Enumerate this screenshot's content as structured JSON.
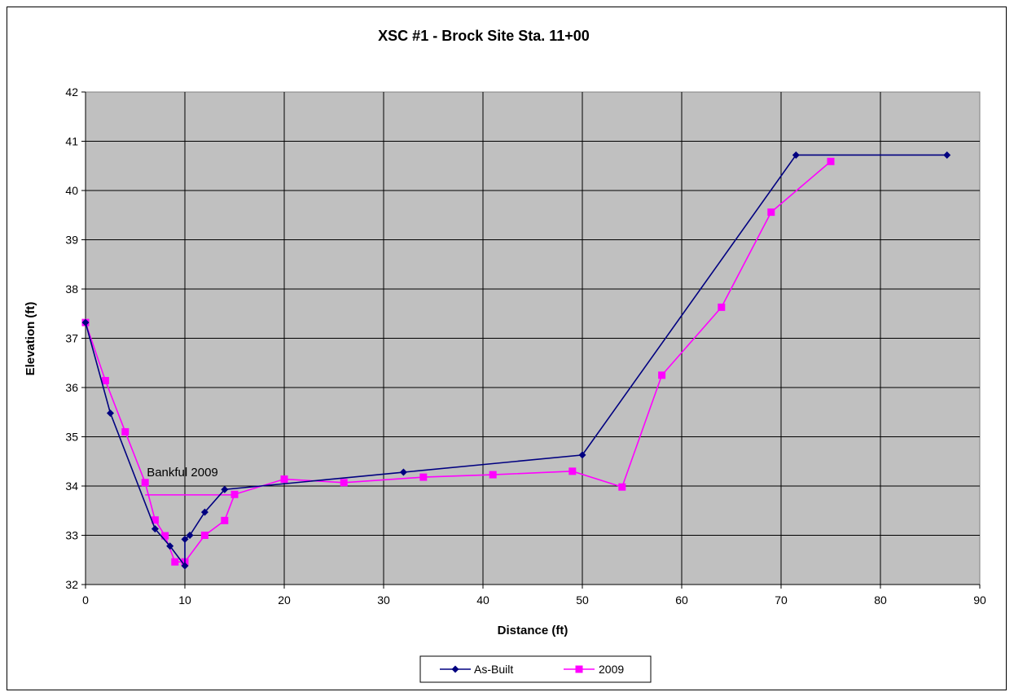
{
  "chart_data": {
    "type": "line",
    "title": "XSC #1 - Brock Site Sta. 11+00",
    "xlabel": "Distance (ft)",
    "ylabel": "Elevation (ft)",
    "xlim": [
      0,
      90
    ],
    "ylim": [
      32,
      42
    ],
    "x_ticks": [
      "0",
      "10",
      "20",
      "30",
      "40",
      "50",
      "60",
      "70",
      "80",
      "90"
    ],
    "y_ticks": [
      "32",
      "33",
      "34",
      "35",
      "36",
      "37",
      "38",
      "39",
      "40",
      "41",
      "42"
    ],
    "grid": true,
    "legend_placement": "bottom",
    "series": [
      {
        "name": "As-Built",
        "color": "#000080",
        "marker": "diamond",
        "x": [
          0,
          2.5,
          7,
          8.5,
          10,
          10,
          10.5,
          12,
          14,
          32,
          50,
          71.5,
          86.7
        ],
        "y": [
          37.32,
          35.48,
          33.13,
          32.78,
          32.38,
          32.92,
          33.0,
          33.47,
          33.93,
          34.28,
          34.63,
          40.72,
          40.72
        ]
      },
      {
        "name": "2009",
        "color": "#ff00ff",
        "marker": "square",
        "x": [
          0,
          2,
          4,
          6,
          7,
          8,
          9,
          10,
          12,
          14,
          15,
          20,
          26,
          34,
          41,
          49,
          54,
          58,
          64,
          69,
          75
        ],
        "y": [
          37.32,
          36.14,
          35.1,
          34.07,
          33.31,
          32.99,
          32.46,
          32.46,
          33.0,
          33.3,
          33.83,
          34.14,
          34.07,
          34.18,
          34.23,
          34.3,
          33.98,
          36.25,
          37.63,
          39.56,
          40.59
        ]
      }
    ],
    "bankful": {
      "label": "Bankful 2009",
      "elevation": 33.82,
      "x_start": 6,
      "x_end": 15,
      "color": "#ff00ff"
    }
  }
}
